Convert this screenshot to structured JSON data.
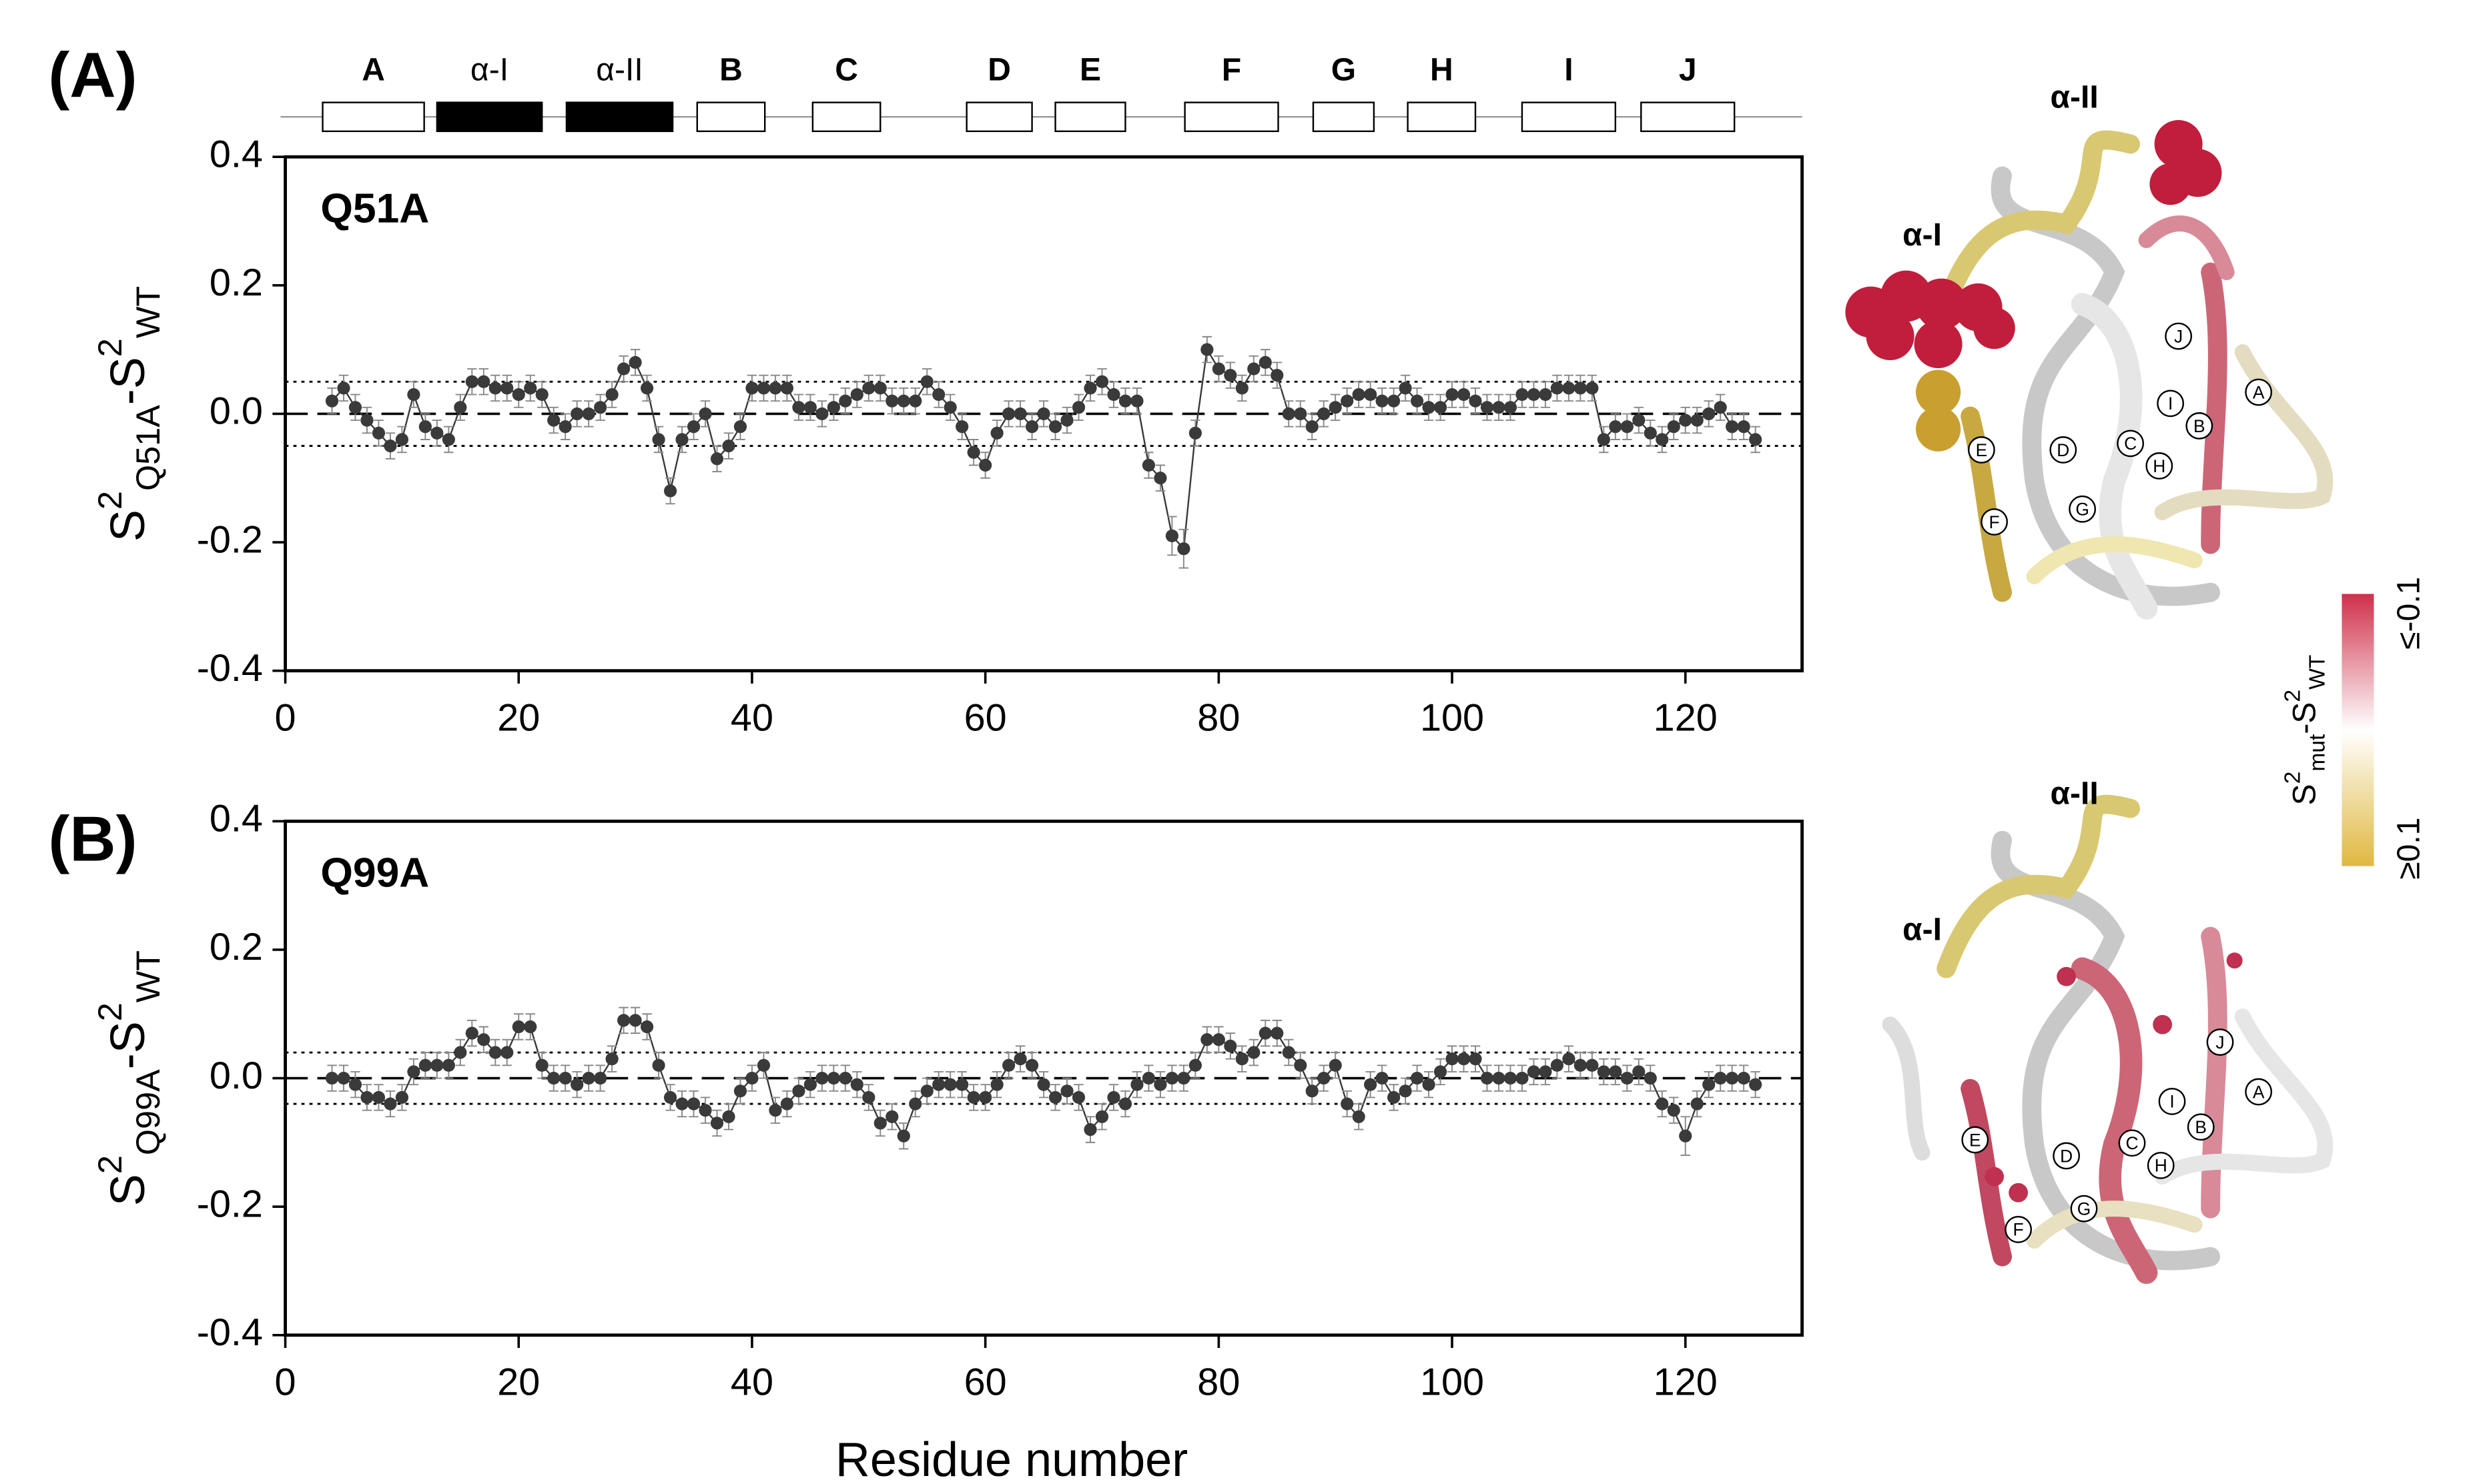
{
  "chart_data": [
    {
      "type": "line",
      "panel": "(A)",
      "title": "Q51A",
      "ylabel": [
        {
          "t": "S"
        },
        {
          "t": "2",
          "sup": true
        },
        {
          "t": "Q51A",
          "sub": true
        },
        {
          "t": "-S"
        },
        {
          "t": "2",
          "sup": true
        },
        {
          "t": "WT",
          "sub": true
        }
      ],
      "x": [
        4,
        5,
        6,
        7,
        8,
        9,
        10,
        11,
        12,
        13,
        14,
        15,
        16,
        17,
        18,
        19,
        20,
        21,
        22,
        23,
        24,
        25,
        26,
        27,
        28,
        29,
        30,
        31,
        32,
        33,
        34,
        35,
        36,
        37,
        38,
        39,
        40,
        41,
        42,
        43,
        44,
        45,
        46,
        47,
        48,
        49,
        50,
        51,
        52,
        53,
        54,
        55,
        56,
        57,
        58,
        59,
        60,
        61,
        62,
        63,
        64,
        65,
        66,
        67,
        68,
        69,
        70,
        71,
        72,
        73,
        74,
        75,
        76,
        77,
        78,
        79,
        80,
        81,
        82,
        83,
        84,
        85,
        86,
        87,
        88,
        89,
        90,
        91,
        92,
        93,
        94,
        95,
        96,
        97,
        98,
        99,
        100,
        101,
        102,
        103,
        104,
        105,
        106,
        107,
        108,
        109,
        110,
        111,
        112,
        113,
        114,
        115,
        116,
        117,
        118,
        119,
        120,
        121,
        122,
        123,
        124,
        125,
        126
      ],
      "values": [
        0.02,
        0.04,
        0.01,
        -0.01,
        -0.03,
        -0.05,
        -0.04,
        0.03,
        -0.02,
        -0.03,
        -0.04,
        0.01,
        0.05,
        0.05,
        0.04,
        0.04,
        0.03,
        0.04,
        0.03,
        -0.01,
        -0.02,
        0.0,
        0.0,
        0.01,
        0.03,
        0.07,
        0.08,
        0.04,
        -0.04,
        -0.12,
        -0.04,
        -0.02,
        0.0,
        -0.07,
        -0.05,
        -0.02,
        0.04,
        0.04,
        0.04,
        0.04,
        0.01,
        0.01,
        0.0,
        0.01,
        0.02,
        0.03,
        0.04,
        0.04,
        0.02,
        0.02,
        0.02,
        0.05,
        0.03,
        0.01,
        -0.02,
        -0.06,
        -0.08,
        -0.03,
        0.0,
        0.0,
        -0.02,
        0.0,
        -0.02,
        -0.01,
        0.01,
        0.04,
        0.05,
        0.03,
        0.02,
        0.02,
        -0.08,
        -0.1,
        -0.19,
        -0.21,
        -0.03,
        0.1,
        0.07,
        0.06,
        0.04,
        0.07,
        0.08,
        0.06,
        0.0,
        0.0,
        -0.02,
        0.0,
        0.01,
        0.02,
        0.03,
        0.03,
        0.02,
        0.02,
        0.04,
        0.02,
        0.01,
        0.01,
        0.03,
        0.03,
        0.02,
        0.01,
        0.01,
        0.01,
        0.03,
        0.03,
        0.03,
        0.04,
        0.04,
        0.04,
        0.04,
        -0.04,
        -0.02,
        -0.02,
        -0.01,
        -0.03,
        -0.04,
        -0.02,
        -0.01,
        -0.01,
        0.0,
        0.01,
        -0.02,
        -0.02,
        -0.04
      ],
      "errors": [
        0.02,
        0.02,
        0.02,
        0.02,
        0.02,
        0.02,
        0.02,
        0.02,
        0.02,
        0.02,
        0.02,
        0.02,
        0.02,
        0.02,
        0.02,
        0.02,
        0.02,
        0.02,
        0.02,
        0.02,
        0.02,
        0.02,
        0.02,
        0.02,
        0.02,
        0.02,
        0.02,
        0.02,
        0.02,
        0.02,
        0.02,
        0.02,
        0.02,
        0.02,
        0.02,
        0.02,
        0.02,
        0.02,
        0.02,
        0.02,
        0.02,
        0.02,
        0.02,
        0.02,
        0.02,
        0.02,
        0.02,
        0.02,
        0.02,
        0.02,
        0.02,
        0.02,
        0.02,
        0.02,
        0.02,
        0.02,
        0.02,
        0.02,
        0.02,
        0.02,
        0.02,
        0.02,
        0.02,
        0.02,
        0.02,
        0.02,
        0.02,
        0.02,
        0.02,
        0.02,
        0.02,
        0.02,
        0.03,
        0.03,
        0.02,
        0.02,
        0.02,
        0.02,
        0.02,
        0.02,
        0.02,
        0.02,
        0.02,
        0.02,
        0.02,
        0.02,
        0.02,
        0.02,
        0.02,
        0.02,
        0.02,
        0.02,
        0.02,
        0.02,
        0.02,
        0.02,
        0.02,
        0.02,
        0.02,
        0.02,
        0.02,
        0.02,
        0.02,
        0.02,
        0.02,
        0.02,
        0.02,
        0.02,
        0.02,
        0.02,
        0.02,
        0.02,
        0.02,
        0.02,
        0.02,
        0.02,
        0.02,
        0.02,
        0.02,
        0.02,
        0.02,
        0.02,
        0.02
      ],
      "color": "#3a3a3a",
      "thresholds": [
        0.05,
        -0.05
      ],
      "xlim": [
        0,
        130
      ],
      "xticks": [
        0,
        20,
        40,
        60,
        80,
        100,
        120
      ],
      "ylim": [
        -0.4,
        0.4
      ],
      "yticks": [
        0.4,
        0.2,
        {
          "value": 0,
          "label": "0.0"
        },
        -0.2,
        -0.4
      ]
    },
    {
      "type": "line",
      "panel": "(B)",
      "title": "Q99A",
      "ylabel": [
        {
          "t": "S"
        },
        {
          "t": "2",
          "sup": true
        },
        {
          "t": "Q99A",
          "sub": true
        },
        {
          "t": "-S"
        },
        {
          "t": "2",
          "sup": true
        },
        {
          "t": "WT",
          "sub": true
        }
      ],
      "xlabel": "Residue number",
      "x": [
        4,
        5,
        6,
        7,
        8,
        9,
        10,
        11,
        12,
        13,
        14,
        15,
        16,
        17,
        18,
        19,
        20,
        21,
        22,
        23,
        24,
        25,
        26,
        27,
        28,
        29,
        30,
        31,
        32,
        33,
        34,
        35,
        36,
        37,
        38,
        39,
        40,
        41,
        42,
        43,
        44,
        45,
        46,
        47,
        48,
        49,
        50,
        51,
        52,
        53,
        54,
        55,
        56,
        57,
        58,
        59,
        60,
        61,
        62,
        63,
        64,
        65,
        66,
        67,
        68,
        69,
        70,
        71,
        72,
        73,
        74,
        75,
        76,
        77,
        78,
        79,
        80,
        81,
        82,
        83,
        84,
        85,
        86,
        87,
        88,
        89,
        90,
        91,
        92,
        93,
        94,
        95,
        96,
        97,
        98,
        99,
        100,
        101,
        102,
        103,
        104,
        105,
        106,
        107,
        108,
        109,
        110,
        111,
        112,
        113,
        114,
        115,
        116,
        117,
        118,
        119,
        120,
        121,
        122,
        123,
        124,
        125,
        126
      ],
      "values": [
        0,
        0,
        -0.01,
        -0.03,
        -0.03,
        -0.04,
        -0.03,
        0.01,
        0.02,
        0.02,
        0.02,
        0.04,
        0.07,
        0.06,
        0.04,
        0.04,
        0.08,
        0.08,
        0.02,
        0,
        0,
        -0.01,
        0,
        0,
        0.03,
        0.09,
        0.09,
        0.08,
        0.02,
        -0.03,
        -0.04,
        -0.04,
        -0.05,
        -0.07,
        -0.06,
        -0.02,
        0,
        0.02,
        -0.05,
        -0.04,
        -0.02,
        -0.01,
        0,
        0,
        0,
        -0.01,
        -0.03,
        -0.07,
        -0.06,
        -0.09,
        -0.04,
        -0.02,
        -0.01,
        -0.01,
        -0.01,
        -0.03,
        -0.03,
        -0.01,
        0.02,
        0.03,
        0.02,
        -0.01,
        -0.03,
        -0.02,
        -0.03,
        -0.08,
        -0.06,
        -0.03,
        -0.04,
        -0.01,
        0,
        -0.01,
        0,
        0,
        0.02,
        0.06,
        0.06,
        0.05,
        0.03,
        0.04,
        0.07,
        0.07,
        0.04,
        0.02,
        -0.02,
        0,
        0.02,
        -0.04,
        -0.06,
        -0.01,
        0,
        -0.03,
        -0.02,
        0,
        -0.01,
        0.01,
        0.03,
        0.03,
        0.03,
        0,
        0,
        0,
        0,
        0.01,
        0.01,
        0.02,
        0.03,
        0.02,
        0.02,
        0.01,
        0.01,
        0,
        0.01,
        0,
        -0.04,
        -0.05,
        -0.09,
        -0.04,
        -0.01,
        0,
        0,
        0,
        -0.01
      ],
      "errors": [
        0.02,
        0.02,
        0.02,
        0.02,
        0.02,
        0.02,
        0.02,
        0.02,
        0.02,
        0.02,
        0.02,
        0.02,
        0.02,
        0.02,
        0.02,
        0.02,
        0.02,
        0.02,
        0.02,
        0.02,
        0.02,
        0.02,
        0.02,
        0.02,
        0.02,
        0.02,
        0.02,
        0.02,
        0.02,
        0.02,
        0.02,
        0.02,
        0.02,
        0.02,
        0.02,
        0.02,
        0.02,
        0.02,
        0.02,
        0.02,
        0.02,
        0.02,
        0.02,
        0.02,
        0.02,
        0.02,
        0.02,
        0.02,
        0.02,
        0.02,
        0.02,
        0.02,
        0.02,
        0.02,
        0.02,
        0.02,
        0.02,
        0.02,
        0.02,
        0.02,
        0.02,
        0.02,
        0.02,
        0.02,
        0.02,
        0.02,
        0.02,
        0.02,
        0.02,
        0.02,
        0.02,
        0.02,
        0.02,
        0.02,
        0.02,
        0.02,
        0.02,
        0.02,
        0.02,
        0.02,
        0.02,
        0.02,
        0.02,
        0.02,
        0.02,
        0.02,
        0.02,
        0.02,
        0.02,
        0.02,
        0.02,
        0.02,
        0.02,
        0.02,
        0.02,
        0.02,
        0.02,
        0.02,
        0.02,
        0.02,
        0.02,
        0.02,
        0.02,
        0.02,
        0.02,
        0.02,
        0.02,
        0.02,
        0.02,
        0.02,
        0.02,
        0.02,
        0.02,
        0.02,
        0.02,
        0.02,
        0.03,
        0.02,
        0.02,
        0.02,
        0.02,
        0.02,
        0.02
      ],
      "color": "#3a3a3a",
      "thresholds": [
        0.04,
        -0.04
      ],
      "xlim": [
        0,
        130
      ],
      "xticks": [
        0,
        20,
        40,
        60,
        80,
        100,
        120
      ],
      "ylim": [
        -0.4,
        0.4
      ],
      "yticks": [
        0.4,
        0.2,
        {
          "value": 0,
          "label": "0.0"
        },
        -0.2,
        -0.4
      ]
    }
  ],
  "secondary_structure": [
    {
      "label": "A",
      "start": 3.2,
      "end": 11.9,
      "helix": false
    },
    {
      "label": "α-I",
      "start": 13,
      "end": 22,
      "helix": true
    },
    {
      "label": "α-II",
      "start": 24.1,
      "end": 33.2,
      "helix": true
    },
    {
      "label": "B",
      "start": 35.3,
      "end": 41.1,
      "helix": false
    },
    {
      "label": "C",
      "start": 45.2,
      "end": 51,
      "helix": false
    },
    {
      "label": "D",
      "start": 58.4,
      "end": 64,
      "helix": false
    },
    {
      "label": "E",
      "start": 66,
      "end": 72,
      "helix": false
    },
    {
      "label": "F",
      "start": 77.1,
      "end": 85.1,
      "helix": false
    },
    {
      "label": "G",
      "start": 88.1,
      "end": 93.3,
      "helix": false
    },
    {
      "label": "H",
      "start": 96.2,
      "end": 102,
      "helix": false
    },
    {
      "label": "I",
      "start": 106,
      "end": 114,
      "helix": false
    },
    {
      "label": "J",
      "start": 116.2,
      "end": 124.2,
      "helix": false
    }
  ],
  "structures": [
    {
      "helix_labels": [
        "α-I",
        "α-II"
      ],
      "strand_labels": [
        "J",
        "I",
        "B",
        "A",
        "E",
        "D",
        "C",
        "H",
        "F",
        "G"
      ]
    },
    {
      "helix_labels": [
        "α-I",
        "α-II"
      ],
      "strand_labels": [
        "J",
        "I",
        "B",
        "A",
        "E",
        "D",
        "C",
        "H",
        "F",
        "G"
      ]
    }
  ],
  "colorbar": {
    "title": [
      {
        "t": "S"
      },
      {
        "t": "2",
        "sup": true
      },
      {
        "t": "mut",
        "sub": true
      },
      {
        "t": "-S"
      },
      {
        "t": "2",
        "sup": true
      },
      {
        "t": "WT",
        "sub": true
      }
    ],
    "top_label": "≤-0.1",
    "bottom_label": "≥0.1",
    "top_color": "#d0304a",
    "bottom_color": "#e0b840"
  }
}
